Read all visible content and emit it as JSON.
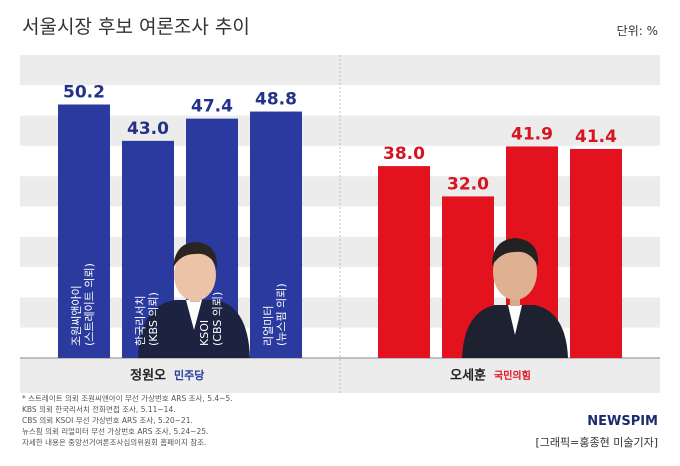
{
  "chart_data": {
    "type": "bar",
    "title": "서울시장 후보 여론조사 추이",
    "unit": "단위: %",
    "categories": [
      "조원씨앤아이\n(스트레이트 의뢰)",
      "한국리서치\n(KBS 의뢰)",
      "KSOI\n(CBS 의뢰)",
      "리얼미터\n(뉴스핌 의뢰)"
    ],
    "series": [
      {
        "name": "정원오",
        "party": "민주당",
        "color": "#2a3a9e",
        "values": [
          50.2,
          43.0,
          47.4,
          48.8
        ],
        "value_labels": [
          "50.2",
          "43.0",
          "47.4",
          "48.8"
        ]
      },
      {
        "name": "오세훈",
        "party": "국민의힘",
        "color": "#e3121f",
        "values": [
          38.0,
          32.0,
          41.9,
          41.4
        ],
        "value_labels": [
          "38.0",
          "32.0",
          "41.9",
          "41.4"
        ]
      }
    ],
    "ylim": [
      0,
      60
    ],
    "notes": [
      "* 스트레이트 의뢰 조원씨앤아이 무선 가상번호 ARS 조사, 5.4~5.",
      "KBS 의뢰 한국리서치 전화면접 조사, 5.11~14.",
      "CBS 의뢰 KSOI 무선 가상번호 ARS 조사, 5.20~21.",
      "뉴스핌 의뢰 리얼미터 무선 가상번호 ARS 조사, 5.24~25.",
      "자세한 내용은 중앙선거여론조사심의위원회 홈페이지 참조."
    ],
    "brand": "NEWSPIM",
    "credit": "[그래픽=홍종현 미술기자]"
  }
}
